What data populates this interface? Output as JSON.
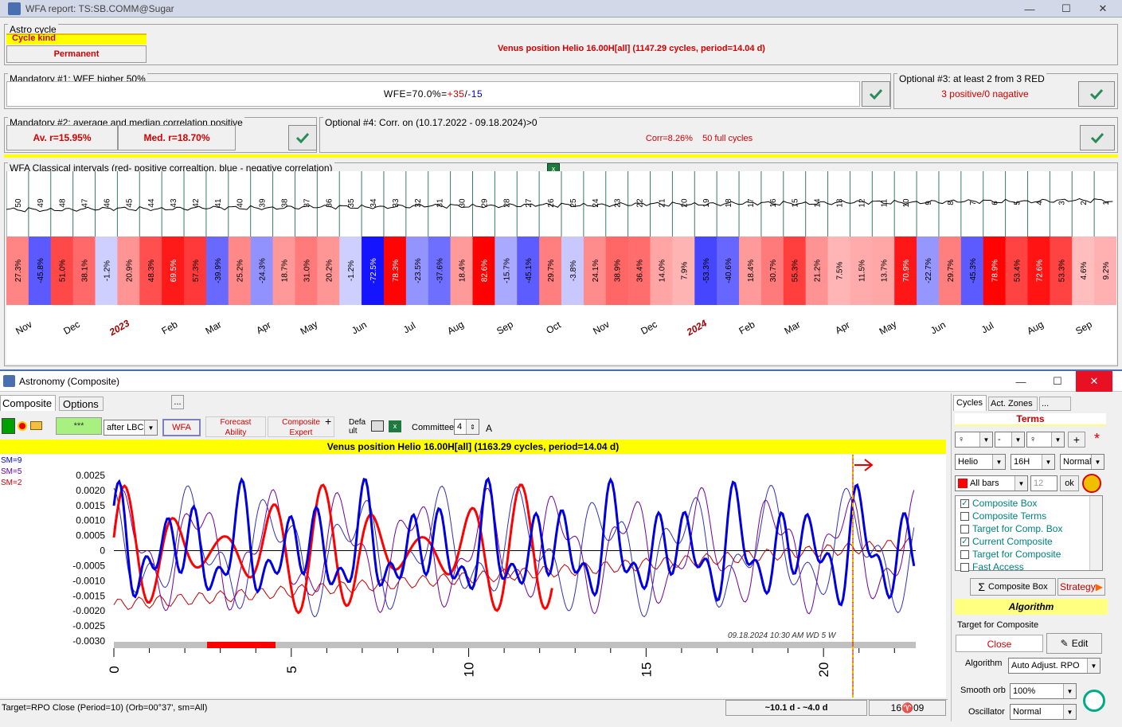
{
  "window": {
    "title": "WFA report: TS:SB.COMM@Sugar",
    "minimize": "—",
    "maximize": "☐",
    "close": "✕"
  },
  "astro": {
    "group_label": "Astro cycle",
    "cycle_kind_label": "Cycle kind",
    "cycle_kind_value": "Permanent",
    "info": "Venus position Helio  16.00H[all]  (1147.29 cycles, period=14.04 d)"
  },
  "mandatory1": {
    "label": "Mandatory #1: WFE higher 50%",
    "value_prefix": "WFE=70.0%=",
    "pos": "+35",
    "sep": "/",
    "neg": "-15"
  },
  "optional3": {
    "label": "Optional #3: at least 2 from 3 RED",
    "value": "3 positive/0 nagative"
  },
  "mandatory2": {
    "label": "Mandatory #2: average and median correlation  positive",
    "avg": "Av. r=15.95%",
    "med": "Med. r=18.70%"
  },
  "optional4": {
    "label": "Optional #4: Corr. on (10.17.2022 - 09.18.2024)>0",
    "corr": "Corr=8.26%",
    "cycles": "50 full cycles"
  },
  "wfa": {
    "label": "WFA Classical intervals (red- positive correaltion, blue - negative correlation)",
    "bars": [
      {
        "n": "50",
        "v": 27.3
      },
      {
        "n": "49",
        "v": -45.8
      },
      {
        "n": "48",
        "v": 51.0
      },
      {
        "n": "47",
        "v": 38.1
      },
      {
        "n": "46",
        "v": -1.2
      },
      {
        "n": "45",
        "v": 20.9
      },
      {
        "n": "44",
        "v": 48.3
      },
      {
        "n": "43",
        "v": 69.5
      },
      {
        "n": "42",
        "v": 57.3
      },
      {
        "n": "41",
        "v": -39.9
      },
      {
        "n": "40",
        "v": 25.2
      },
      {
        "n": "39",
        "v": -24.3
      },
      {
        "n": "38",
        "v": 18.7
      },
      {
        "n": "37",
        "v": 31.0
      },
      {
        "n": "36",
        "v": 20.2
      },
      {
        "n": "35",
        "v": -1.2
      },
      {
        "n": "34",
        "v": -72.5
      },
      {
        "n": "33",
        "v": 78.3
      },
      {
        "n": "32",
        "v": -23.5
      },
      {
        "n": "31",
        "v": -37.6
      },
      {
        "n": "30",
        "v": 18.4
      },
      {
        "n": "29",
        "v": 82.6
      },
      {
        "n": "28",
        "v": -15.7
      },
      {
        "n": "27",
        "v": -45.1
      },
      {
        "n": "26",
        "v": 29.7
      },
      {
        "n": "25",
        "v": -3.8
      },
      {
        "n": "24",
        "v": 24.1
      },
      {
        "n": "23",
        "v": 38.9
      },
      {
        "n": "22",
        "v": 36.4
      },
      {
        "n": "21",
        "v": 14.0
      },
      {
        "n": "20",
        "v": 7.9
      },
      {
        "n": "19",
        "v": -53.3
      },
      {
        "n": "18",
        "v": -40.6
      },
      {
        "n": "17",
        "v": 18.4
      },
      {
        "n": "16",
        "v": 30.7
      },
      {
        "n": "15",
        "v": 55.3
      },
      {
        "n": "14",
        "v": 21.2
      },
      {
        "n": "13",
        "v": 7.5
      },
      {
        "n": "12",
        "v": 11.5
      },
      {
        "n": "11",
        "v": 13.7
      },
      {
        "n": "10",
        "v": 70.9
      },
      {
        "n": "9",
        "v": -22.7
      },
      {
        "n": "8",
        "v": 29.7
      },
      {
        "n": "7",
        "v": -45.3
      },
      {
        "n": "6",
        "v": 78.9
      },
      {
        "n": "5",
        "v": 53.4
      },
      {
        "n": "4",
        "v": 72.6
      },
      {
        "n": "3",
        "v": 53.3
      },
      {
        "n": "2",
        "v": 4.6
      },
      {
        "n": "1",
        "v": 9.2
      }
    ],
    "months": [
      {
        "t": "Nov",
        "x": 32
      },
      {
        "t": "Dec",
        "x": 92
      },
      {
        "t": "2023",
        "x": 152,
        "year": true
      },
      {
        "t": "Feb",
        "x": 215
      },
      {
        "t": "Mar",
        "x": 270
      },
      {
        "t": "Apr",
        "x": 333
      },
      {
        "t": "May",
        "x": 390
      },
      {
        "t": "Jun",
        "x": 453
      },
      {
        "t": "Jul",
        "x": 516
      },
      {
        "t": "Aug",
        "x": 574
      },
      {
        "t": "Sep",
        "x": 636
      },
      {
        "t": "Oct",
        "x": 697
      },
      {
        "t": "Nov",
        "x": 757
      },
      {
        "t": "Dec",
        "x": 817
      },
      {
        "t": "2024",
        "x": 877,
        "year": true
      },
      {
        "t": "Feb",
        "x": 940
      },
      {
        "t": "Mar",
        "x": 997
      },
      {
        "t": "Apr",
        "x": 1060
      },
      {
        "t": "May",
        "x": 1117
      },
      {
        "t": "Jun",
        "x": 1180
      },
      {
        "t": "Jul",
        "x": 1242
      },
      {
        "t": "Aug",
        "x": 1302
      },
      {
        "t": "Sep",
        "x": 1363
      }
    ]
  },
  "astronomy": {
    "title": "Astronomy (Composite)",
    "tabs": [
      "Composite",
      "Options",
      "..."
    ],
    "toolbar": {
      "stars": "***",
      "after": "after LBC",
      "wfa": "WFA",
      "forecast1": "Forecast",
      "forecast2": "Ability",
      "expert1": "Composite",
      "expert2": "Expert",
      "default1": "Defa",
      "default2": "ult",
      "committee": "Committee",
      "committee_val": "4",
      "a": "A"
    },
    "chart_title": "Venus position Helio  16.00H[all]  (1163.29 cycles, period=14.04 d)",
    "sm": [
      "SM=9",
      "SM=5",
      "SM=2"
    ],
    "date_label": "09.18.2024  10:30 AM WD  5 W",
    "status_left": "Target=RPO Close (Period=10) (Orb=00°37', sm=All)",
    "status_mid": "~10.1 d - ~4.0 d",
    "status_right": "16♈09"
  },
  "chart_data": {
    "type": "line",
    "x_ticks": [
      "0",
      "5",
      "10",
      "15",
      "20"
    ],
    "y_ticks": [
      "0.0025",
      "0.0020",
      "0.0015",
      "0.0010",
      "0.0005",
      "0",
      "-0.0005",
      "-0.0010",
      "-0.0015",
      "-0.0020",
      "-0.0025",
      "-0.0030"
    ],
    "xlim": [
      0,
      22.6
    ],
    "ylim": [
      -0.003,
      0.0025
    ]
  },
  "right_panel": {
    "tabs": [
      "Cycles",
      "Act. Zones",
      "..."
    ],
    "terms": "Terms",
    "planet1": "♀",
    "minus": "-",
    "planet2": "♀",
    "helio": "Helio",
    "h16": "16H",
    "normal": "Normal",
    "allbars": "All bars",
    "num": "12",
    "ok": "ok",
    "items": [
      {
        "label": "Composite Box",
        "checked": true
      },
      {
        "label": "Composite Terms",
        "checked": false
      },
      {
        "label": "Target for Comp. Box",
        "checked": false
      },
      {
        "label": "Current Composite",
        "checked": true
      },
      {
        "label": "Target for Composite",
        "checked": false
      },
      {
        "label": "Fast Access",
        "checked": false
      }
    ],
    "composite_box": "Composite Box",
    "strategy": "Strategy",
    "algorithm_title": "Algorithm",
    "target_label": "Target for Composite",
    "close": "Close",
    "edit": "Edit",
    "algorithm_label": "Algorithm",
    "algorithm_val": "Auto Adjust. RPO",
    "smooth_label": "Smooth orb",
    "smooth_val": "100%",
    "osc_label": "Oscillator",
    "osc_val": "Normal"
  },
  "colors": {
    "pos": "#ff0000",
    "neg": "#0000ff",
    "yellow": "#ffff00"
  }
}
